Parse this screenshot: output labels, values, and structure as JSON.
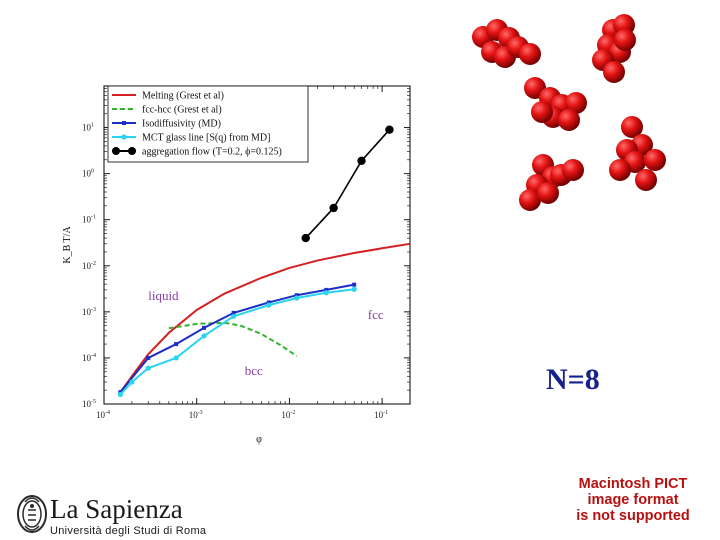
{
  "chart_data": {
    "type": "line",
    "title": "",
    "xlabel": "φ",
    "ylabel": "K_B T/A",
    "xscale": "log",
    "yscale": "log",
    "xlim": [
      0.0001,
      0.2
    ],
    "ylim": [
      1e-05,
      80
    ],
    "x_ticks": [
      {
        "v": 0.0001,
        "base": "10",
        "exp": "-4"
      },
      {
        "v": 0.001,
        "base": "10",
        "exp": "-3"
      },
      {
        "v": 0.01,
        "base": "10",
        "exp": "-2"
      },
      {
        "v": 0.1,
        "base": "10",
        "exp": "-1"
      }
    ],
    "y_ticks": [
      {
        "v": 1e-05,
        "base": "10",
        "exp": "-5"
      },
      {
        "v": 0.0001,
        "base": "10",
        "exp": "-4"
      },
      {
        "v": 0.001,
        "base": "10",
        "exp": "-3"
      },
      {
        "v": 0.01,
        "base": "10",
        "exp": "-2"
      },
      {
        "v": 0.1,
        "base": "10",
        "exp": "-1"
      },
      {
        "v": 1,
        "base": "10",
        "exp": "0"
      },
      {
        "v": 10,
        "base": "10",
        "exp": "1"
      }
    ],
    "legend_position": "top-left",
    "series": [
      {
        "name": "Melting  (Grest et al)",
        "color": "#d42020",
        "style": "solid",
        "marker": "none",
        "x": [
          0.00015,
          0.0002,
          0.0003,
          0.0005,
          0.001,
          0.002,
          0.005,
          0.01,
          0.02,
          0.05,
          0.1,
          0.2
        ],
        "y": [
          1.8e-05,
          4e-05,
          0.00012,
          0.00035,
          0.0011,
          0.0025,
          0.0055,
          0.009,
          0.013,
          0.019,
          0.024,
          0.03
        ]
      },
      {
        "name": "fcc-hcc (Grest et al)",
        "color": "#33b233",
        "style": "dashed",
        "marker": "none",
        "x": [
          0.0005,
          0.001,
          0.002,
          0.003,
          0.005,
          0.008,
          0.012
        ],
        "y": [
          0.00044,
          0.00055,
          0.00058,
          0.0005,
          0.00033,
          0.00019,
          0.00011
        ]
      },
      {
        "name": "Isodiffusivity (MD)",
        "color": "#1c2ec8",
        "style": "solid",
        "marker": "square",
        "x": [
          0.00015,
          0.0003,
          0.0006,
          0.0012,
          0.0025,
          0.006,
          0.012,
          0.025,
          0.05
        ],
        "y": [
          1.8e-05,
          0.0001,
          0.0002,
          0.00045,
          0.00095,
          0.0016,
          0.0023,
          0.003,
          0.0039
        ]
      },
      {
        "name": "MCT glass line [S(q) from MD]",
        "color": "#2ad4f0",
        "style": "solid",
        "marker": "circle",
        "x": [
          0.00015,
          0.0002,
          0.0003,
          0.0006,
          0.0012,
          0.0025,
          0.006,
          0.012,
          0.025,
          0.05
        ],
        "y": [
          1.6e-05,
          3e-05,
          6e-05,
          0.0001,
          0.0003,
          0.0008,
          0.0014,
          0.002,
          0.0026,
          0.0031
        ]
      },
      {
        "name": "aggregation flow (T=0.2, ϕ=0.125)",
        "color": "#000000",
        "style": "solid",
        "marker": "big-circle",
        "x": [
          0.015,
          0.03,
          0.06,
          0.12
        ],
        "y": [
          0.04,
          0.18,
          1.9,
          9
        ]
      }
    ],
    "annotations": [
      {
        "text": "liquid",
        "x": 0.0003,
        "y": 0.0018
      },
      {
        "text": "fcc",
        "x": 0.07,
        "y": 0.0007
      },
      {
        "text": "bcc",
        "x": 0.0033,
        "y": 4.3e-05
      }
    ]
  },
  "cluster_color": "#e31313",
  "n_label": "N=8",
  "pict_message": [
    "Macintosh PICT",
    "image format",
    "is not supported"
  ],
  "logo": {
    "title": "La Sapienza",
    "subtitle": "Università degli Studi di Roma"
  }
}
